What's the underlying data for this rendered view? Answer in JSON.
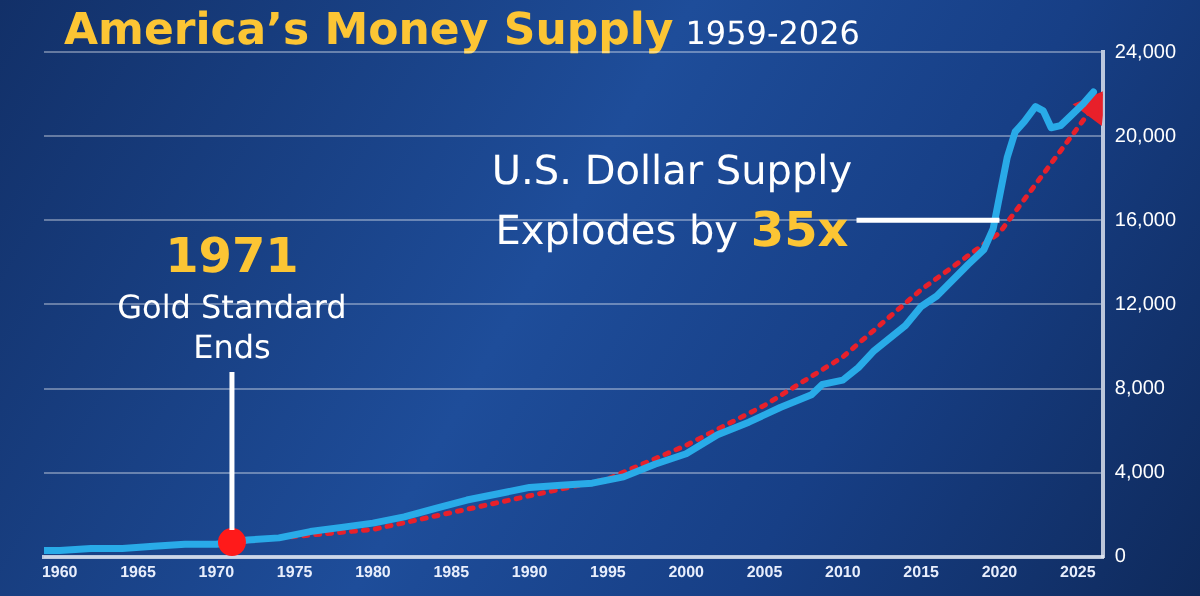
{
  "chart_data": {
    "type": "line",
    "title": "America’s Money Supply",
    "subtitle": "1959-2026",
    "xlim": [
      1959,
      2026.6
    ],
    "xticks": [
      1960,
      1965,
      1970,
      1975,
      1980,
      1985,
      1990,
      1995,
      2000,
      2005,
      2010,
      2015,
      2020,
      2025
    ],
    "ylim": [
      0,
      24000
    ],
    "yticks": [
      0,
      {
        "value": 4000,
        "label": "4,000"
      },
      {
        "value": 8000,
        "label": "8,000"
      },
      {
        "value": 12000,
        "label": "12,000"
      },
      {
        "value": 16000,
        "label": "16,000"
      },
      {
        "value": 20000,
        "label": "20,000"
      },
      {
        "value": 24000,
        "label": "24,000"
      }
    ],
    "grid": "y",
    "legend": false,
    "series": [
      {
        "type": "line",
        "color": "#29abe8",
        "marker": "none",
        "line_style": "solid",
        "x": [
          1959,
          1960,
          1962,
          1964,
          1966,
          1968,
          1969,
          1970,
          1972,
          1974,
          1976,
          1978,
          1980,
          1982,
          1984,
          1986,
          1988,
          1990,
          1992,
          1994,
          1996,
          1998,
          2000,
          2002,
          2004,
          2006,
          2008,
          2008.7,
          2010,
          2011,
          2012,
          2014,
          2015,
          2016,
          2018,
          2019,
          2019.6,
          2020.1,
          2020.5,
          2021,
          2021.6,
          2022.3,
          2022.8,
          2023.3,
          2023.9,
          2024.6,
          2025.3,
          2026
        ],
        "values": [
          300,
          300,
          400,
          400,
          500,
          600,
          600,
          600,
          800,
          900,
          1200,
          1400,
          1600,
          1900,
          2300,
          2700,
          3000,
          3300,
          3400,
          3500,
          3800,
          4400,
          4900,
          5800,
          6400,
          7100,
          7700,
          8200,
          8400,
          9000,
          9800,
          11000,
          11900,
          12400,
          13900,
          14600,
          15600,
          17500,
          19000,
          20200,
          20700,
          21400,
          21200,
          20400,
          20500,
          21000,
          21500,
          22100
        ]
      },
      {
        "type": "line",
        "color": "#e8202a",
        "line_style": "dotted",
        "x": [
          1971,
          1980,
          1990,
          1995,
          2000,
          2005,
          2010,
          2015,
          2020,
          2026
        ],
        "values": [
          700,
          1300,
          2900,
          3700,
          5300,
          7200,
          9500,
          12700,
          15400,
          21400
        ]
      },
      {
        "type": "scatter",
        "color": "#ff1a1a",
        "marker": "circle",
        "x": [
          1971
        ],
        "values": [
          700
        ]
      }
    ],
    "annotations": [
      {
        "text": "1971 Gold Standard Ends",
        "x": 1971,
        "y": 700
      },
      {
        "text": "U.S. Dollar Supply Explodes by 35x",
        "x": 2020,
        "y": 16000
      }
    ]
  }
}
